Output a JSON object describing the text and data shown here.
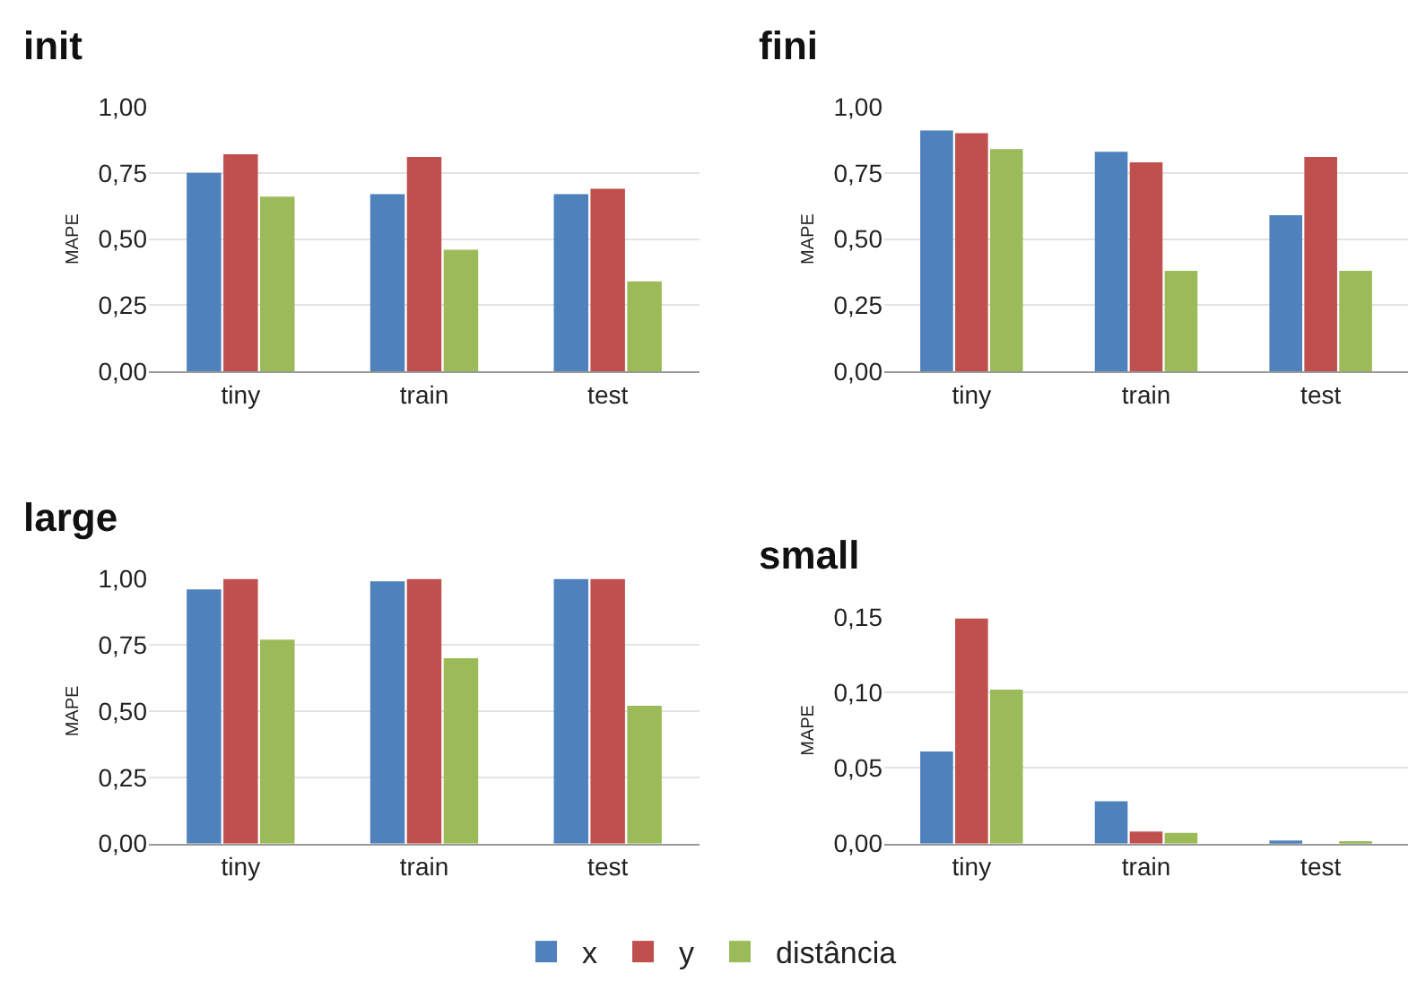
{
  "chart_data": [
    {
      "type": "bar",
      "title": "init",
      "ylabel": "MAPE",
      "categories": [
        "tiny",
        "train",
        "test"
      ],
      "series": [
        {
          "name": "x",
          "color": "#4f81bd",
          "values": [
            0.75,
            0.67,
            0.67
          ]
        },
        {
          "name": "y",
          "color": "#c0504d",
          "values": [
            0.82,
            0.81,
            0.69
          ]
        },
        {
          "name": "distância",
          "color": "#9bbb59",
          "values": [
            0.66,
            0.46,
            0.34
          ]
        }
      ],
      "ylim": [
        0,
        1
      ],
      "yticks": [
        {
          "value": 0,
          "label": "0,00"
        },
        {
          "value": 0.25,
          "label": "0,25"
        },
        {
          "value": 0.5,
          "label": "0,50"
        },
        {
          "value": 0.75,
          "label": "0,75"
        },
        {
          "value": 1,
          "label": "1,00"
        }
      ],
      "grid": "y",
      "legend": "bottom"
    },
    {
      "type": "bar",
      "title": "fini",
      "ylabel": "MAPE",
      "categories": [
        "tiny",
        "train",
        "test"
      ],
      "series": [
        {
          "name": "x",
          "color": "#4f81bd",
          "values": [
            0.91,
            0.83,
            0.59
          ]
        },
        {
          "name": "y",
          "color": "#c0504d",
          "values": [
            0.9,
            0.79,
            0.81
          ]
        },
        {
          "name": "distância",
          "color": "#9bbb59",
          "values": [
            0.84,
            0.38,
            0.38
          ]
        }
      ],
      "ylim": [
        0,
        1
      ],
      "yticks": [
        {
          "value": 0,
          "label": "0,00"
        },
        {
          "value": 0.25,
          "label": "0,25"
        },
        {
          "value": 0.5,
          "label": "0,50"
        },
        {
          "value": 0.75,
          "label": "0,75"
        },
        {
          "value": 1,
          "label": "1,00"
        }
      ],
      "grid": "y",
      "legend": "bottom"
    },
    {
      "type": "bar",
      "title": "large",
      "ylabel": "MAPE",
      "categories": [
        "tiny",
        "train",
        "test"
      ],
      "series": [
        {
          "name": "x",
          "color": "#4f81bd",
          "values": [
            0.96,
            0.99,
            1.0
          ]
        },
        {
          "name": "y",
          "color": "#c0504d",
          "values": [
            1.0,
            1.0,
            1.0
          ]
        },
        {
          "name": "distância",
          "color": "#9bbb59",
          "values": [
            0.77,
            0.7,
            0.52
          ]
        }
      ],
      "ylim": [
        0,
        1
      ],
      "yticks": [
        {
          "value": 0,
          "label": "0,00"
        },
        {
          "value": 0.25,
          "label": "0,25"
        },
        {
          "value": 0.5,
          "label": "0,50"
        },
        {
          "value": 0.75,
          "label": "0,75"
        },
        {
          "value": 1,
          "label": "1,00"
        }
      ],
      "grid": "y",
      "legend": "bottom"
    },
    {
      "type": "bar",
      "title": "small",
      "ylabel": "MAPE",
      "categories": [
        "tiny",
        "train",
        "test"
      ],
      "series": [
        {
          "name": "x",
          "color": "#4f81bd",
          "values": [
            0.061,
            0.028,
            0.002
          ]
        },
        {
          "name": "y",
          "color": "#c0504d",
          "values": [
            0.149,
            0.008,
            0.0
          ]
        },
        {
          "name": "distância",
          "color": "#9bbb59",
          "values": [
            0.102,
            0.007,
            0.001
          ]
        }
      ],
      "ylim": [
        0,
        0.15
      ],
      "yticks": [
        {
          "value": 0,
          "label": "0,00"
        },
        {
          "value": 0.05,
          "label": "0,05"
        },
        {
          "value": 0.1,
          "label": "0,10"
        },
        {
          "value": 0.15,
          "label": "0,15"
        }
      ],
      "grid": "y",
      "legend": "bottom"
    }
  ]
}
